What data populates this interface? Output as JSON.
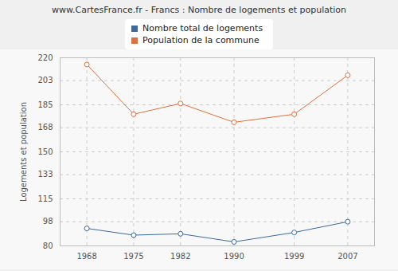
{
  "chart_data": {
    "type": "line",
    "title": "www.CartesFrance.fr - Francs : Nombre de logements et population",
    "y_label": "Logements et population",
    "x": [
      1968,
      1975,
      1982,
      1990,
      1999,
      2007
    ],
    "series": [
      {
        "name": "Nombre total de logements",
        "color": "#3b6a9e",
        "values": [
          93,
          88,
          89,
          83,
          90,
          98
        ]
      },
      {
        "name": "Population de la commune",
        "color": "#e0703b",
        "values": [
          215,
          178,
          186,
          172,
          178,
          207
        ]
      }
    ],
    "xlim": [
      1964,
      2011
    ],
    "xticks": [
      1968,
      1975,
      1982,
      1990,
      1999,
      2007
    ],
    "ylim": [
      80,
      220
    ],
    "yticks": [
      80,
      98,
      115,
      133,
      150,
      168,
      185,
      203,
      220
    ],
    "grid": true,
    "marker": "circle",
    "legend": "top"
  }
}
